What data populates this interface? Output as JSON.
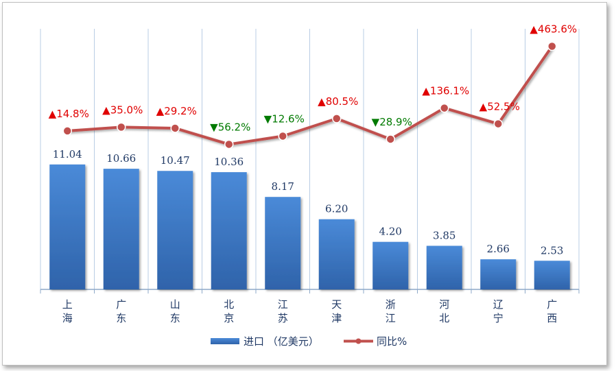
{
  "chart_data": {
    "type": "bar",
    "categories": [
      "上\n海",
      "广\n东",
      "山\n东",
      "北\n京",
      "江\n苏",
      "天\n津",
      "浙\n江",
      "河\n北",
      "辽\n宁",
      "广\n西"
    ],
    "series": [
      {
        "name": "进口 （亿美元）",
        "type": "bar",
        "values": [
          11.04,
          10.66,
          10.47,
          10.36,
          8.17,
          6.2,
          4.2,
          3.85,
          2.66,
          2.53
        ],
        "labels": [
          "11.04",
          "10.66",
          "10.47",
          "10.36",
          "8.17",
          "6.20",
          "4.20",
          "3.85",
          "2.66",
          "2.53"
        ],
        "color": "#3a78c8"
      },
      {
        "name": "同比%",
        "type": "line",
        "values": [
          14.8,
          35.0,
          29.2,
          -56.2,
          -12.6,
          80.5,
          -28.9,
          136.1,
          52.5,
          463.6
        ],
        "labels": [
          "14.8%",
          "35.0%",
          "29.2%",
          "56.2%",
          "12.6%",
          "80.5%",
          "28.9%",
          "136.1%",
          "52.5%",
          "463.6%"
        ],
        "color": "#c0504d"
      }
    ],
    "colors": {
      "up": "#e00000",
      "down": "#007a00",
      "bar_top": "#4a8ad8",
      "bar_bottom": "#2f63aa",
      "grid": "#b8cce4",
      "axis": "#8ea9c8"
    },
    "legend": "bottom",
    "grid": true
  }
}
